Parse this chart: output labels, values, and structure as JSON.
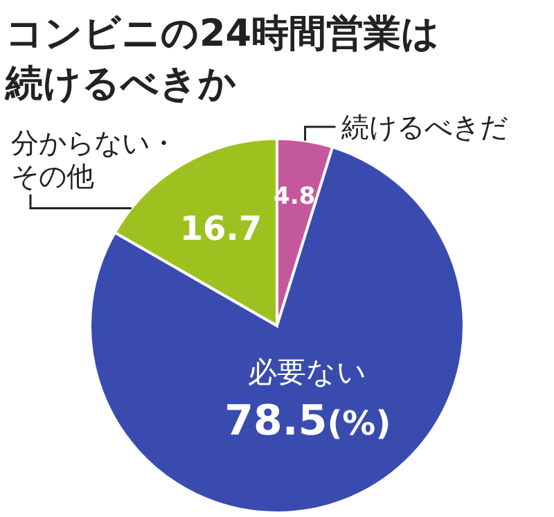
{
  "chart_data": {
    "type": "pie",
    "title": "コンビニの24時間営業は続けるべきか",
    "categories": [
      "続けるべきだ",
      "必要ない",
      "分からない・その他"
    ],
    "values": [
      4.8,
      78.5,
      16.7
    ],
    "colors": [
      "#c4589c",
      "#3a4bb0",
      "#9dc21f"
    ],
    "data_labels": true,
    "annotations": [
      "(%)"
    ]
  }
}
